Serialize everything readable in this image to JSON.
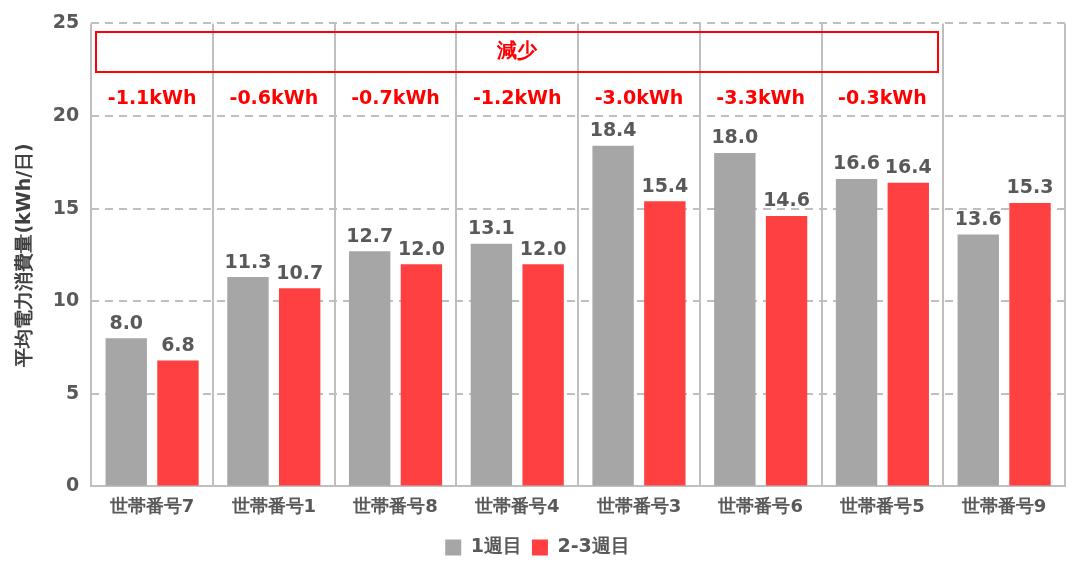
{
  "chart_data": {
    "type": "bar",
    "ylabel": "平均電力消費量(kWh/日)",
    "categories": [
      "世帯番号7",
      "世帯番号1",
      "世帯番号8",
      "世帯番号4",
      "世帯番号3",
      "世帯番号6",
      "世帯番号5",
      "世帯番号9"
    ],
    "series": [
      {
        "name": "1週目",
        "color": "#a6a6a6",
        "values": [
          8.0,
          11.3,
          12.7,
          13.1,
          18.4,
          18.0,
          16.6,
          13.6
        ],
        "value_labels": [
          "8.0",
          "11.3",
          "12.7",
          "13.1",
          "18.4",
          "18.0",
          "16.6",
          "13.6"
        ]
      },
      {
        "name": "2-3週目",
        "color": "#ff4040",
        "values": [
          6.8,
          10.7,
          12.0,
          12.0,
          15.4,
          14.6,
          16.4,
          15.3
        ],
        "value_labels": [
          "6.8",
          "10.7",
          "12.0",
          "12.0",
          "15.4",
          "14.6",
          "16.4",
          "15.3"
        ]
      }
    ],
    "ylim": [
      0,
      25
    ],
    "yticks": [
      0,
      5,
      10,
      15,
      20,
      25
    ],
    "grid": true,
    "legend": "bottom",
    "annotations": [
      "減少",
      "-1.1kWh",
      "-0.6kWh",
      "-0.7kWh",
      "-1.2kWh",
      "-3.0kWh",
      "-3.3kWh",
      "-0.3kWh"
    ]
  }
}
